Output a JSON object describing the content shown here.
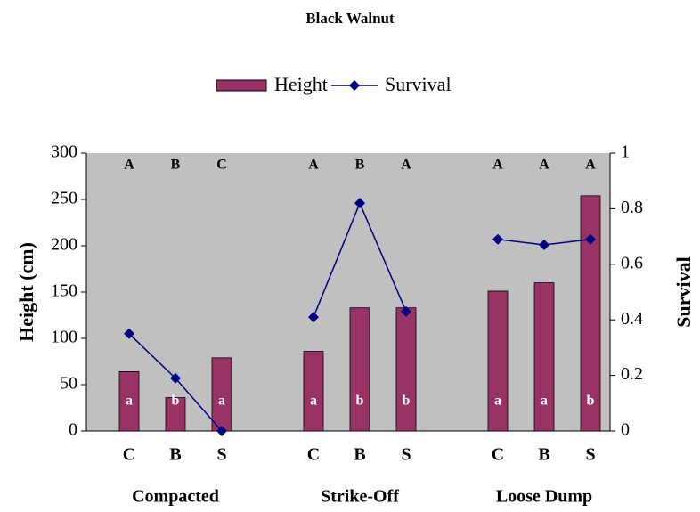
{
  "chart_data": {
    "type": "bar_line",
    "title": "Black Walnut",
    "ylabel": "Height (cm)",
    "y2label": "Survival",
    "ylim": [
      0,
      300
    ],
    "yticks": [
      0,
      50,
      100,
      150,
      200,
      250,
      300
    ],
    "y2lim": [
      0,
      1
    ],
    "y2ticks": [
      0,
      0.2,
      0.4,
      0.6,
      0.8,
      1
    ],
    "groups": [
      "Compacted",
      "Strike-Off",
      "Loose Dump"
    ],
    "categories": [
      [
        "C",
        "B",
        "S"
      ],
      [
        "C",
        "B",
        "S"
      ],
      [
        "C",
        "B",
        "S"
      ]
    ],
    "top_labels": [
      [
        "A",
        "B",
        "C"
      ],
      [
        "A",
        "B",
        "A"
      ],
      [
        "A",
        "A",
        "A"
      ]
    ],
    "bar_labels": [
      [
        "a",
        "b",
        "a"
      ],
      [
        "a",
        "b",
        "b"
      ],
      [
        "a",
        "a",
        "b"
      ]
    ],
    "series": [
      {
        "name": "Height",
        "type": "bar",
        "color": "#993366",
        "values": [
          [
            64,
            36,
            79
          ],
          [
            86,
            133,
            133
          ],
          [
            151,
            160,
            254
          ]
        ]
      },
      {
        "name": "Survival",
        "type": "line",
        "axis": "y2",
        "color": "#000080",
        "values": [
          [
            0.35,
            0.19,
            0
          ],
          [
            0.41,
            0.82,
            0.43
          ],
          [
            0.69,
            0.67,
            0.69
          ]
        ]
      }
    ]
  }
}
